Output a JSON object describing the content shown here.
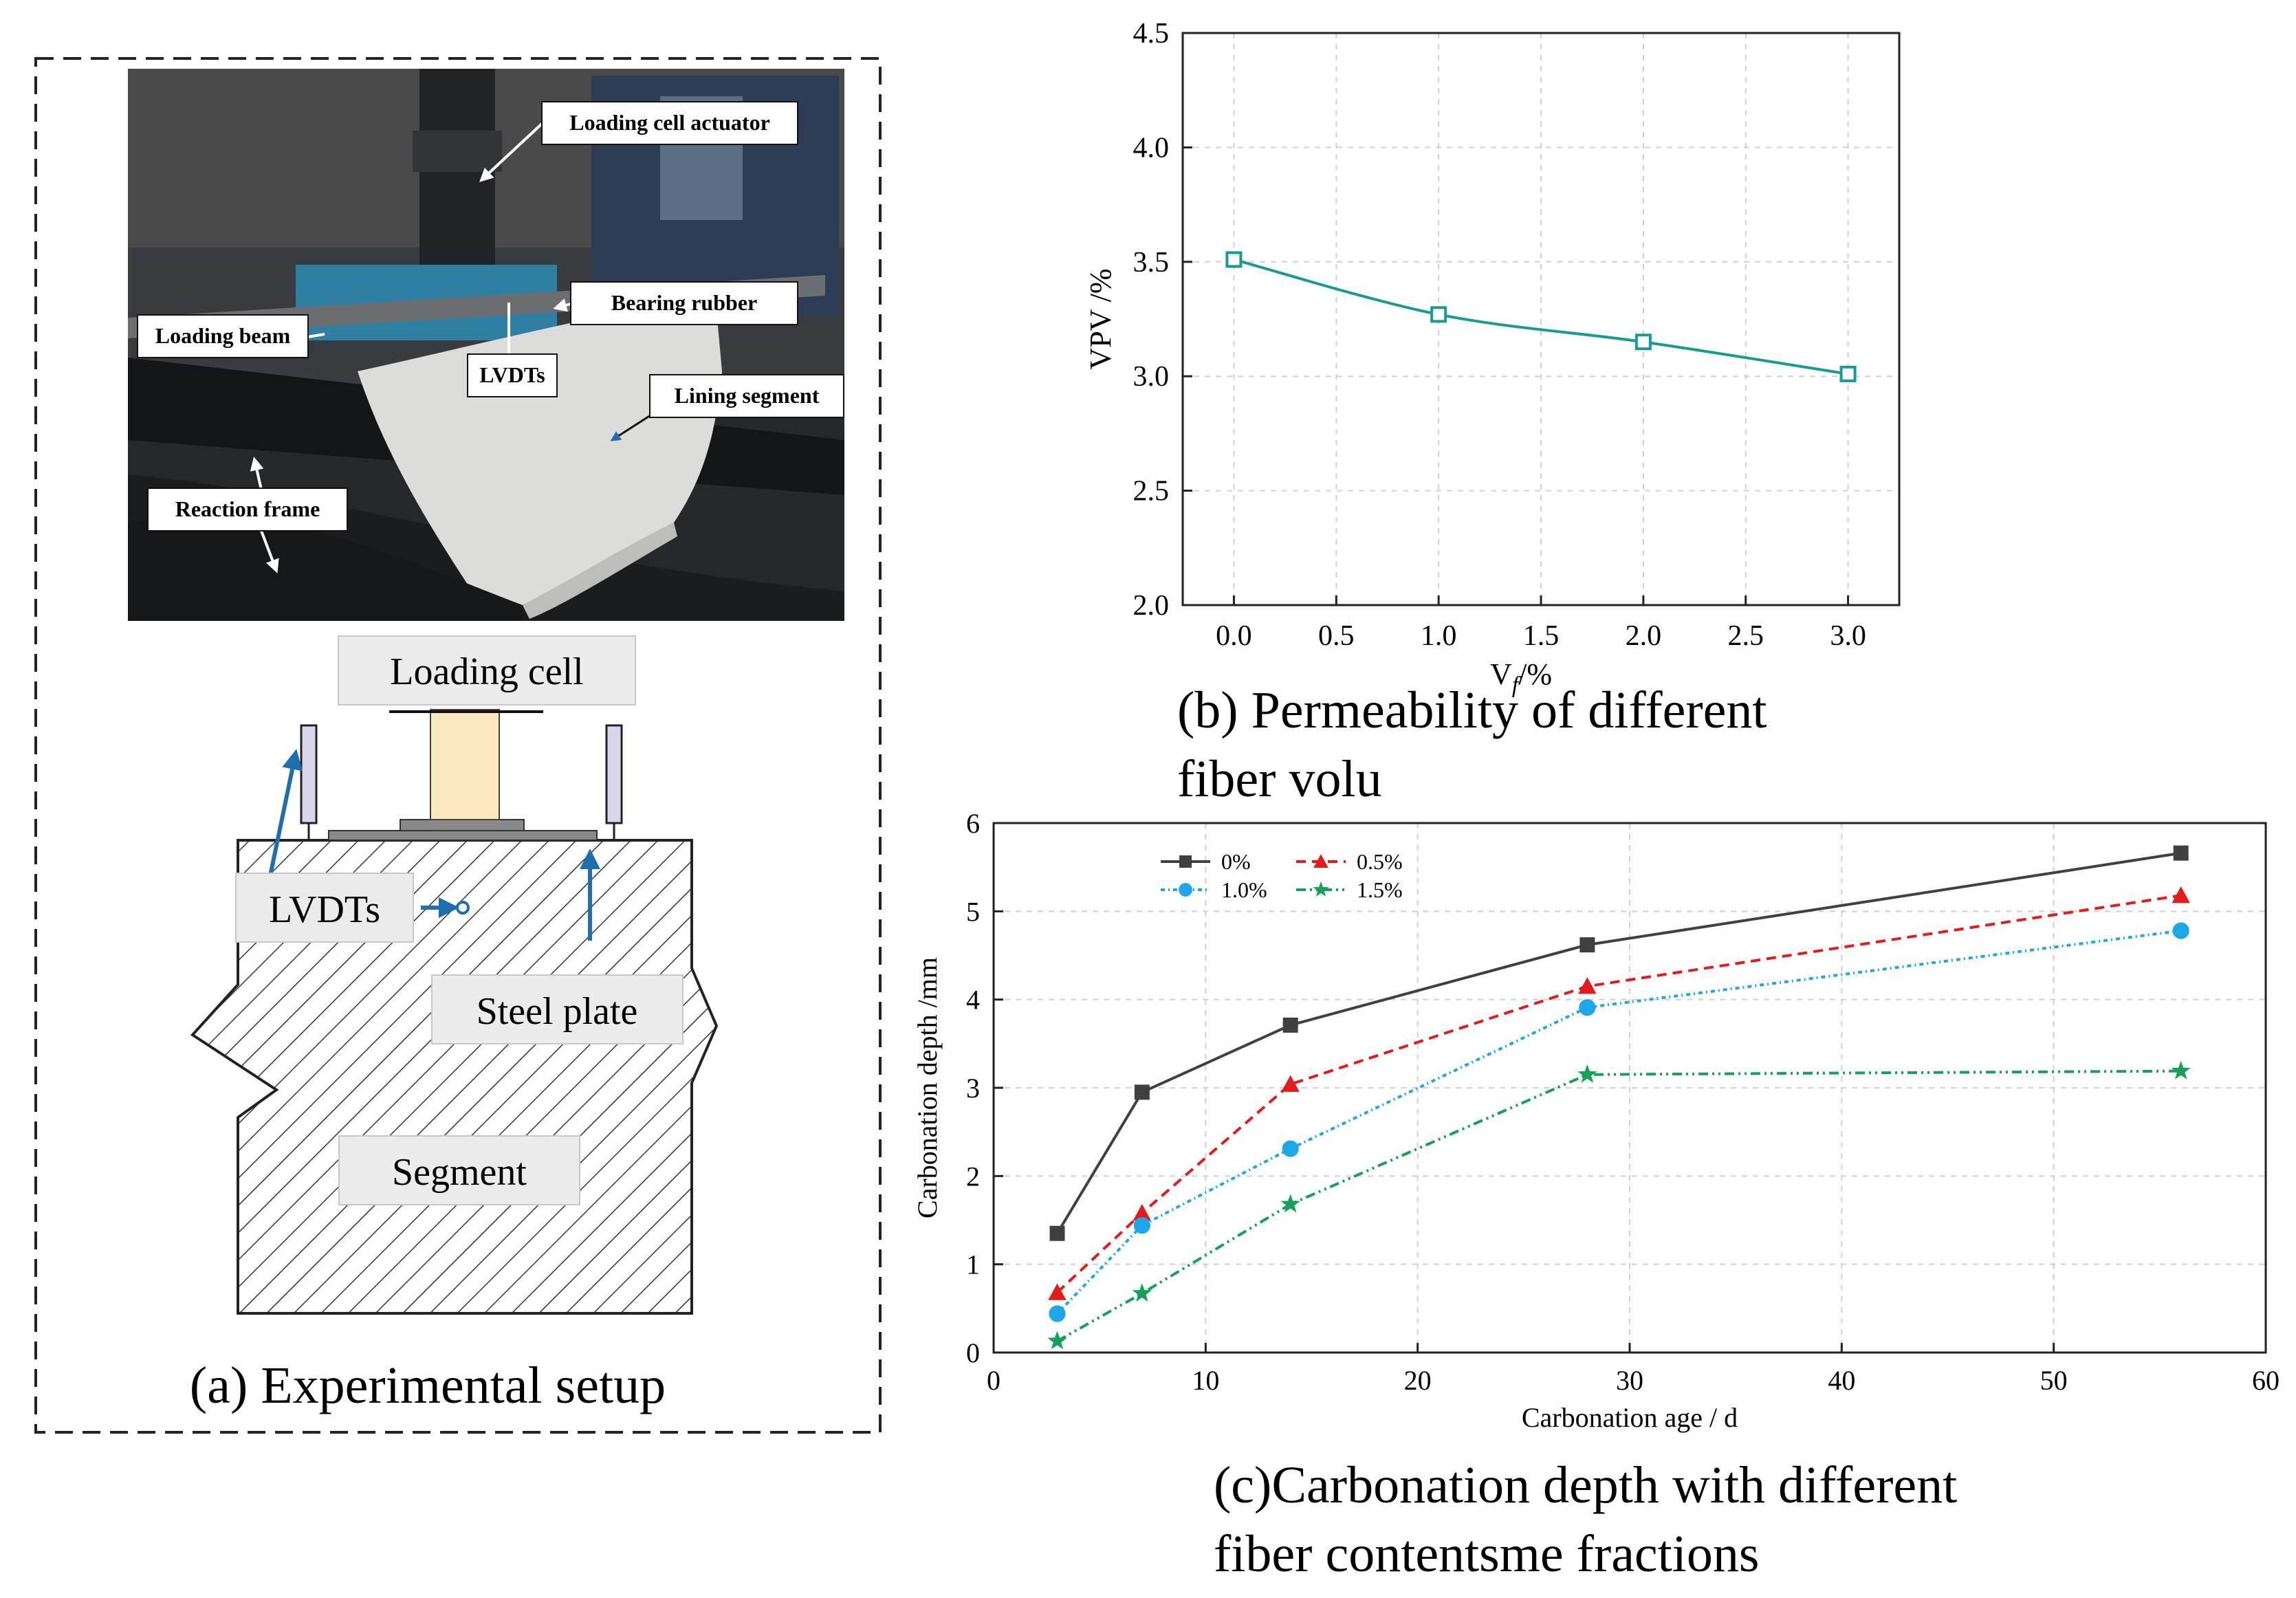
{
  "panel_a": {
    "caption": "(a) Experimental setup",
    "photo_labels": {
      "loading_cell_actuator": "Loading cell actuator",
      "bearing_rubber": "Bearing rubber",
      "loading_beam": "Loading beam",
      "lvdts": "LVDTs",
      "lining_segment": "Lining segment",
      "reaction_frame": "Reaction frame"
    },
    "schematic_labels": {
      "loading_cell": "Loading cell",
      "lvdts": "LVDTs",
      "steel_plate": "Steel plate",
      "segment": "Segment"
    },
    "arrow_color": "#1f6eb0"
  },
  "panel_b": {
    "caption_line1": "(b) Permeability of different",
    "caption_line2": "fiber volu",
    "ylabel": "VPV /%",
    "xlabel_base": "V",
    "xlabel_sub": "f",
    "xlabel_tail": "/%",
    "xticks": [
      "0.0",
      "0.5",
      "1.0",
      "1.5",
      "2.0",
      "2.5",
      "3.0"
    ],
    "yticks": [
      "2.0",
      "2.5",
      "3.0",
      "3.5",
      "4.0",
      "4.5"
    ]
  },
  "panel_c": {
    "caption_line1": "(c)Carbonation depth with different",
    "caption_line2": "fiber contentsme fractions",
    "xticks": [
      "0",
      "10",
      "20",
      "30",
      "40",
      "50",
      "60"
    ],
    "yticks": [
      "0",
      "1",
      "2",
      "3",
      "4",
      "5",
      "6"
    ]
  },
  "chart_data": [
    {
      "type": "line",
      "xlabel": "Vf /%",
      "ylabel": "VPV /%",
      "xlim": [
        -0.25,
        3.25
      ],
      "ylim": [
        2.0,
        4.5
      ],
      "grid": true,
      "series": [
        {
          "x": [
            0.0,
            1.0,
            2.0,
            3.0
          ],
          "values": [
            3.51,
            3.27,
            3.15,
            3.01
          ],
          "color": "#1a9a94",
          "marker": "square-open",
          "smooth": true
        }
      ]
    },
    {
      "type": "line",
      "xlabel": "Carbonation age / d",
      "ylabel": "Carbonation depth /mm",
      "xlim": [
        0,
        60
      ],
      "ylim": [
        0,
        6
      ],
      "grid": true,
      "legend_position": "top-left",
      "series": [
        {
          "name": "0%",
          "x": [
            3,
            7,
            14,
            28,
            56
          ],
          "values": [
            1.35,
            2.95,
            3.71,
            4.62,
            5.66
          ],
          "color": "#404040",
          "marker": "square",
          "dash": ""
        },
        {
          "name": "0.5%",
          "x": [
            3,
            7,
            14,
            28,
            56
          ],
          "values": [
            0.68,
            1.58,
            3.04,
            4.15,
            5.18
          ],
          "color": "#e41a1c",
          "marker": "triangle",
          "dash": "14,9"
        },
        {
          "name": "1.0%",
          "x": [
            3,
            7,
            14,
            28,
            56
          ],
          "values": [
            0.44,
            1.44,
            2.31,
            3.91,
            4.78
          ],
          "color": "#1ea7e8",
          "marker": "circle",
          "dash": "6,5,2,5"
        },
        {
          "name": "1.5%",
          "x": [
            3,
            7,
            14,
            28,
            56
          ],
          "values": [
            0.13,
            0.67,
            1.68,
            3.15,
            3.19
          ],
          "color": "#17a05a",
          "marker": "star",
          "dash": "14,6,3,6,3,6"
        }
      ]
    }
  ]
}
